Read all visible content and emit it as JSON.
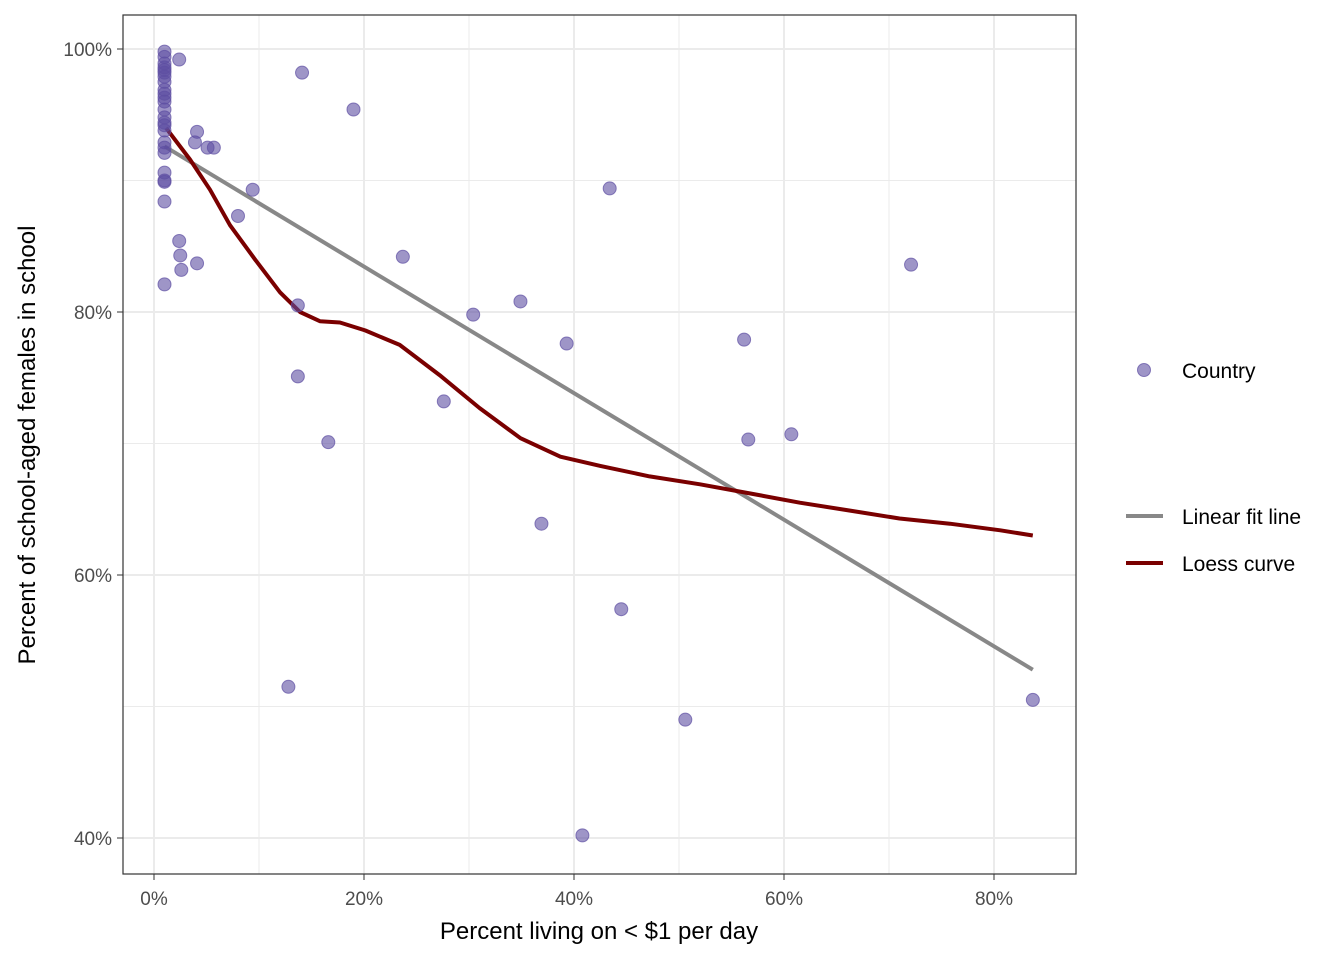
{
  "chart_data": {
    "type": "scatter",
    "title": "",
    "xlabel": "Percent living on < $1 per day",
    "ylabel": "Percent of school-aged females in school",
    "xlim": [
      -3,
      88
    ],
    "ylim": [
      37.4,
      102.5
    ],
    "xticks": [
      0,
      20,
      40,
      60,
      80
    ],
    "xtick_labels": [
      "0%",
      "20%",
      "40%",
      "60%",
      "80%"
    ],
    "yticks": [
      40,
      60,
      80,
      100
    ],
    "ytick_labels": [
      "40%",
      "60%",
      "80%",
      "100%"
    ],
    "grid": true,
    "legend_placement": "right",
    "legend": {
      "points": "Country",
      "linear": "Linear fit line",
      "loess": "Loess curve"
    },
    "colors": {
      "points": "#5e4fa2",
      "linear": "#888888",
      "loess": "#7a0000"
    },
    "points": [
      [
        1,
        99.8
      ],
      [
        1,
        99.4
      ],
      [
        1,
        98.9
      ],
      [
        1,
        98.6
      ],
      [
        1,
        98.4
      ],
      [
        1,
        98.2
      ],
      [
        1,
        97.9
      ],
      [
        1,
        97.5
      ],
      [
        1,
        96.9
      ],
      [
        1,
        96.6
      ],
      [
        1,
        96.3
      ],
      [
        1,
        96.0
      ],
      [
        1,
        95.4
      ],
      [
        1,
        94.8
      ],
      [
        1,
        94.4
      ],
      [
        1,
        94.2
      ],
      [
        1,
        93.8
      ],
      [
        1,
        92.9
      ],
      [
        1,
        92.5
      ],
      [
        1,
        92.1
      ],
      [
        1,
        90.6
      ],
      [
        1,
        90.0
      ],
      [
        1,
        89.9
      ],
      [
        1,
        88.4
      ],
      [
        1,
        82.1
      ],
      [
        2.4,
        99.2
      ],
      [
        4.1,
        93.7
      ],
      [
        3.9,
        92.9
      ],
      [
        5.1,
        92.5
      ],
      [
        5.7,
        92.5
      ],
      [
        9.4,
        89.3
      ],
      [
        8.0,
        87.3
      ],
      [
        2.4,
        85.4
      ],
      [
        2.5,
        84.3
      ],
      [
        2.6,
        83.2
      ],
      [
        4.1,
        83.7
      ],
      [
        14.1,
        98.2
      ],
      [
        19.0,
        95.4
      ],
      [
        23.7,
        84.2
      ],
      [
        13.7,
        80.5
      ],
      [
        13.7,
        75.1
      ],
      [
        16.6,
        70.1
      ],
      [
        12.8,
        51.5
      ],
      [
        27.6,
        73.2
      ],
      [
        30.4,
        79.8
      ],
      [
        34.9,
        80.8
      ],
      [
        39.3,
        77.6
      ],
      [
        36.9,
        63.9
      ],
      [
        40.8,
        40.2
      ],
      [
        43.4,
        89.4
      ],
      [
        44.5,
        57.4
      ],
      [
        50.6,
        49.0
      ],
      [
        56.2,
        77.9
      ],
      [
        56.6,
        70.3
      ],
      [
        60.7,
        70.7
      ],
      [
        72.1,
        83.6
      ],
      [
        83.7,
        50.5
      ]
    ],
    "linear_fit": [
      [
        1.0,
        92.6
      ],
      [
        83.7,
        52.8
      ]
    ],
    "loess": [
      [
        1.14,
        94.0
      ],
      [
        3.43,
        91.6
      ],
      [
        5.33,
        89.3
      ],
      [
        7.24,
        86.6
      ],
      [
        9.62,
        84.0
      ],
      [
        12.0,
        81.5
      ],
      [
        13.9,
        80.0
      ],
      [
        15.8,
        79.3
      ],
      [
        17.7,
        79.2
      ],
      [
        20.1,
        78.6
      ],
      [
        23.4,
        77.5
      ],
      [
        27.2,
        75.2
      ],
      [
        31.0,
        72.7
      ],
      [
        34.9,
        70.4
      ],
      [
        38.7,
        69.0
      ],
      [
        42.5,
        68.3
      ],
      [
        47.2,
        67.5
      ],
      [
        52.0,
        66.9
      ],
      [
        56.8,
        66.2
      ],
      [
        61.5,
        65.5
      ],
      [
        66.3,
        64.9
      ],
      [
        71.0,
        64.3
      ],
      [
        75.8,
        63.9
      ],
      [
        80.6,
        63.4
      ],
      [
        83.7,
        63.0
      ]
    ]
  }
}
